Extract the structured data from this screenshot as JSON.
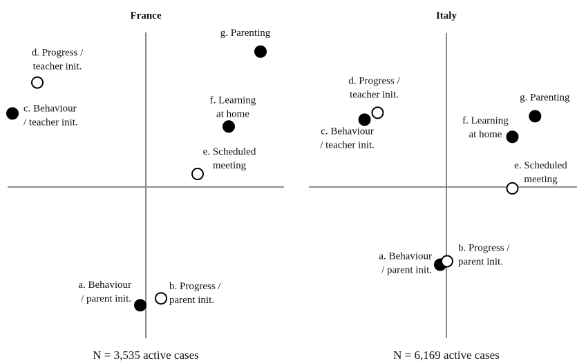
{
  "chart_data": [
    {
      "type": "scatter",
      "title": "France",
      "caption": "N = 3,535 active cases",
      "xlim": [
        -2,
        2
      ],
      "ylim": [
        -2.2,
        2.5
      ],
      "points": [
        {
          "label": [
            "a. Behaviour",
            "/ parent init."
          ],
          "x": -0.08,
          "y": -1.72,
          "marker": "filled"
        },
        {
          "label": [
            "b. Progress /",
            "parent init."
          ],
          "x": 0.22,
          "y": -1.62,
          "marker": "open"
        },
        {
          "label": [
            "c. Behaviour",
            "/ teacher init."
          ],
          "x": -1.93,
          "y": 1.07,
          "marker": "filled"
        },
        {
          "label": [
            "d. Progress /",
            "teacher init."
          ],
          "x": -1.57,
          "y": 1.52,
          "marker": "open"
        },
        {
          "label": [
            "e. Scheduled",
            "meeting"
          ],
          "x": 0.75,
          "y": 0.19,
          "marker": "open"
        },
        {
          "label": [
            "f. Learning",
            "at home"
          ],
          "x": 1.2,
          "y": 0.88,
          "marker": "filled"
        },
        {
          "label": [
            "g. Parenting"
          ],
          "x": 1.66,
          "y": 1.97,
          "marker": "filled"
        }
      ]
    },
    {
      "type": "scatter",
      "title": "Italy",
      "caption": "N = 6,169 active cases",
      "xlim": [
        -2,
        1.9
      ],
      "ylim": [
        -2.2,
        2.5
      ],
      "points": [
        {
          "label": [
            "a. Behaviour",
            "/ parent init."
          ],
          "x": -0.09,
          "y": -1.13,
          "marker": "filled"
        },
        {
          "label": [
            "b. Progress /",
            "parent init."
          ],
          "x": 0.01,
          "y": -1.08,
          "marker": "open"
        },
        {
          "label": [
            "c. Behaviour",
            "/ teacher init."
          ],
          "x": -1.19,
          "y": 0.98,
          "marker": "filled"
        },
        {
          "label": [
            "d. Progress /",
            "teacher init."
          ],
          "x": -1.0,
          "y": 1.08,
          "marker": "open"
        },
        {
          "label": [
            "e. Scheduled",
            "meeting"
          ],
          "x": 0.96,
          "y": -0.02,
          "marker": "open"
        },
        {
          "label": [
            "f. Learning",
            "at home"
          ],
          "x": 0.96,
          "y": 0.73,
          "marker": "filled"
        },
        {
          "label": [
            "g. Parenting"
          ],
          "x": 1.29,
          "y": 1.03,
          "marker": "filled"
        }
      ]
    }
  ]
}
